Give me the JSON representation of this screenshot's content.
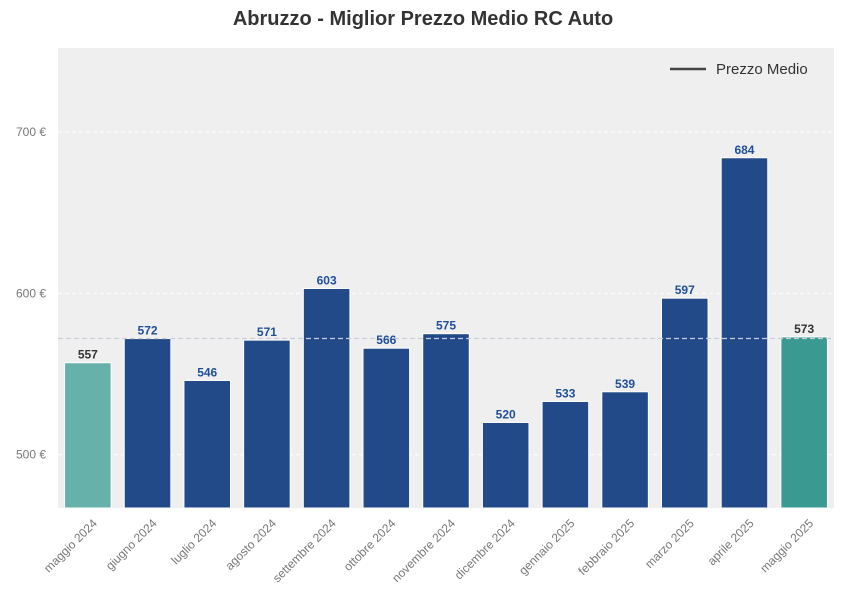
{
  "chart_data": {
    "type": "bar",
    "title": "Abruzzo - Miglior Prezzo Medio RC Auto",
    "categories": [
      "maggio 2024",
      "giugno 2024",
      "luglio 2024",
      "agosto 2024",
      "settembre 2024",
      "ottobre 2024",
      "novembre 2024",
      "dicembre 2024",
      "gennaio 2025",
      "febbraio 2025",
      "marzo 2025",
      "aprile 2025",
      "maggio 2025"
    ],
    "values": [
      557,
      572,
      546,
      571,
      603,
      566,
      575,
      520,
      533,
      539,
      597,
      684,
      573
    ],
    "value_labels": [
      "557",
      "572",
      "546",
      "571",
      "603",
      "566",
      "575",
      "520",
      "533",
      "539",
      "597",
      "684",
      "573"
    ],
    "bar_colors": [
      "#66b2aa",
      "#234a88",
      "#234a88",
      "#234a88",
      "#234a88",
      "#234a88",
      "#234a88",
      "#234a88",
      "#234a88",
      "#234a88",
      "#234a88",
      "#234a88",
      "#3a9a92"
    ],
    "label_colors": [
      "#333333",
      "#1f4e9a",
      "#1f4e9a",
      "#1f4e9a",
      "#1f4e9a",
      "#1f4e9a",
      "#1f4e9a",
      "#1f4e9a",
      "#1f4e9a",
      "#1f4e9a",
      "#1f4e9a",
      "#1f4e9a",
      "#333333"
    ],
    "ylim": [
      467,
      752
    ],
    "yticks": [
      500,
      600,
      700
    ],
    "ytick_labels": [
      "500 €",
      "600 €",
      "700 €"
    ],
    "reference_line": {
      "name": "Prezzo Medio",
      "value": 572
    },
    "legend": {
      "entries": [
        "Prezzo Medio"
      ],
      "placement": "top-right"
    },
    "grid": true,
    "xlabel": "",
    "ylabel": "",
    "background_color": "#efefef"
  }
}
